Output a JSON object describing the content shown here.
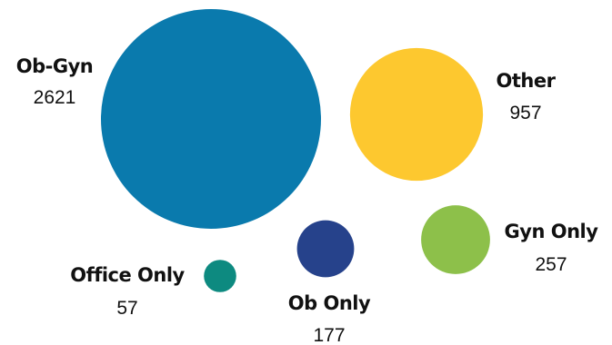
{
  "chart_data": {
    "type": "bubble",
    "title": "",
    "categories": [
      "Ob-Gyn",
      "Other",
      "Gyn Only",
      "Ob Only",
      "Office Only"
    ],
    "values": [
      2621,
      957,
      257,
      177,
      57
    ],
    "value_labels": [
      "2621",
      "957",
      "257",
      "177",
      "57"
    ],
    "colors": [
      "#0a7aad",
      "#fdc82f",
      "#8dc04a",
      "#26428b",
      "#0d8a80"
    ],
    "legend": "none",
    "grid": false
  }
}
